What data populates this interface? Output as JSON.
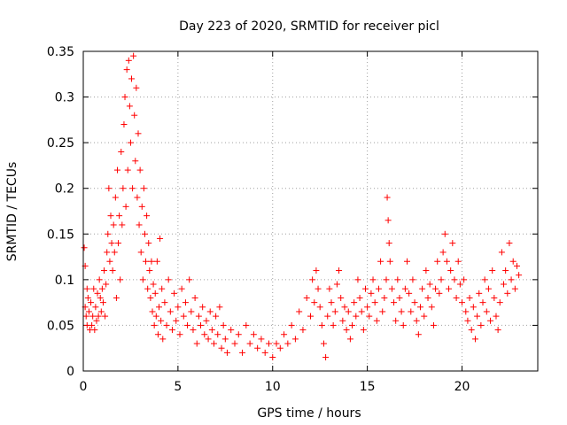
{
  "chart_data": {
    "type": "scatter",
    "title": "Day 223 of 2020, SRMTID for receiver picl",
    "xlabel": "GPS time / hours",
    "ylabel": "SRMTID / TECUs",
    "xlim": [
      0,
      24
    ],
    "ylim": [
      0,
      0.35
    ],
    "xticks": [
      0,
      5,
      10,
      15,
      20
    ],
    "xtick_labels": [
      "0",
      "5",
      "10",
      "15",
      "20"
    ],
    "yticks": [
      0,
      0.05,
      0.1,
      0.15,
      0.2,
      0.25,
      0.3,
      0.35
    ],
    "ytick_labels": [
      "0",
      "0.05",
      "0.1",
      "0.15",
      "0.2",
      "0.25",
      "0.3",
      "0.35"
    ],
    "grid": true,
    "marker": "+",
    "color": "#ff0000",
    "series": [
      {
        "values": [
          [
            0.05,
            0.135
          ],
          [
            0.1,
            0.115
          ],
          [
            0.1,
            0.07
          ],
          [
            0.15,
            0.06
          ],
          [
            0.2,
            0.09
          ],
          [
            0.2,
            0.05
          ],
          [
            0.25,
            0.08
          ],
          [
            0.3,
            0.065
          ],
          [
            0.35,
            0.045
          ],
          [
            0.4,
            0.075
          ],
          [
            0.45,
            0.05
          ],
          [
            0.5,
            0.06
          ],
          [
            0.55,
            0.09
          ],
          [
            0.6,
            0.045
          ],
          [
            0.65,
            0.07
          ],
          [
            0.7,
            0.055
          ],
          [
            0.75,
            0.085
          ],
          [
            0.8,
            0.06
          ],
          [
            0.85,
            0.1
          ],
          [
            0.9,
            0.08
          ],
          [
            0.95,
            0.065
          ],
          [
            1.0,
            0.09
          ],
          [
            1.05,
            0.075
          ],
          [
            1.1,
            0.11
          ],
          [
            1.15,
            0.06
          ],
          [
            1.2,
            0.095
          ],
          [
            1.25,
            0.13
          ],
          [
            1.3,
            0.15
          ],
          [
            1.35,
            0.2
          ],
          [
            1.4,
            0.12
          ],
          [
            1.45,
            0.17
          ],
          [
            1.5,
            0.14
          ],
          [
            1.55,
            0.11
          ],
          [
            1.6,
            0.16
          ],
          [
            1.65,
            0.13
          ],
          [
            1.7,
            0.19
          ],
          [
            1.75,
            0.08
          ],
          [
            1.8,
            0.22
          ],
          [
            1.85,
            0.14
          ],
          [
            1.9,
            0.17
          ],
          [
            1.95,
            0.1
          ],
          [
            2.0,
            0.24
          ],
          [
            2.05,
            0.16
          ],
          [
            2.1,
            0.2
          ],
          [
            2.15,
            0.27
          ],
          [
            2.2,
            0.3
          ],
          [
            2.25,
            0.18
          ],
          [
            2.3,
            0.33
          ],
          [
            2.35,
            0.22
          ],
          [
            2.4,
            0.34
          ],
          [
            2.45,
            0.29
          ],
          [
            2.5,
            0.25
          ],
          [
            2.55,
            0.32
          ],
          [
            2.6,
            0.2
          ],
          [
            2.65,
            0.345
          ],
          [
            2.7,
            0.28
          ],
          [
            2.75,
            0.23
          ],
          [
            2.8,
            0.31
          ],
          [
            2.85,
            0.19
          ],
          [
            2.9,
            0.26
          ],
          [
            2.95,
            0.16
          ],
          [
            3.0,
            0.22
          ],
          [
            3.05,
            0.13
          ],
          [
            3.1,
            0.18
          ],
          [
            3.15,
            0.1
          ],
          [
            3.2,
            0.2
          ],
          [
            3.25,
            0.15
          ],
          [
            3.3,
            0.12
          ],
          [
            3.35,
            0.17
          ],
          [
            3.4,
            0.09
          ],
          [
            3.45,
            0.14
          ],
          [
            3.5,
            0.11
          ],
          [
            3.55,
            0.08
          ],
          [
            3.6,
            0.12
          ],
          [
            3.65,
            0.065
          ],
          [
            3.7,
            0.095
          ],
          [
            3.75,
            0.05
          ],
          [
            3.8,
            0.085
          ],
          [
            3.85,
            0.06
          ],
          [
            3.9,
            0.12
          ],
          [
            3.95,
            0.04
          ],
          [
            4.0,
            0.07
          ],
          [
            4.05,
            0.145
          ],
          [
            4.1,
            0.055
          ],
          [
            4.15,
            0.09
          ],
          [
            4.2,
            0.035
          ],
          [
            4.3,
            0.075
          ],
          [
            4.4,
            0.05
          ],
          [
            4.5,
            0.1
          ],
          [
            4.6,
            0.065
          ],
          [
            4.7,
            0.045
          ],
          [
            4.8,
            0.085
          ],
          [
            4.9,
            0.055
          ],
          [
            5.0,
            0.07
          ],
          [
            5.1,
            0.04
          ],
          [
            5.2,
            0.09
          ],
          [
            5.3,
            0.06
          ],
          [
            5.4,
            0.075
          ],
          [
            5.5,
            0.05
          ],
          [
            5.6,
            0.1
          ],
          [
            5.7,
            0.065
          ],
          [
            5.8,
            0.045
          ],
          [
            5.9,
            0.08
          ],
          [
            6.0,
            0.03
          ],
          [
            6.1,
            0.06
          ],
          [
            6.2,
            0.05
          ],
          [
            6.3,
            0.07
          ],
          [
            6.4,
            0.04
          ],
          [
            6.5,
            0.055
          ],
          [
            6.6,
            0.035
          ],
          [
            6.7,
            0.065
          ],
          [
            6.8,
            0.045
          ],
          [
            6.9,
            0.03
          ],
          [
            7.0,
            0.06
          ],
          [
            7.1,
            0.04
          ],
          [
            7.2,
            0.07
          ],
          [
            7.3,
            0.025
          ],
          [
            7.4,
            0.05
          ],
          [
            7.5,
            0.035
          ],
          [
            7.6,
            0.02
          ],
          [
            7.8,
            0.045
          ],
          [
            8.0,
            0.03
          ],
          [
            8.2,
            0.04
          ],
          [
            8.4,
            0.02
          ],
          [
            8.6,
            0.05
          ],
          [
            8.8,
            0.03
          ],
          [
            9.0,
            0.04
          ],
          [
            9.2,
            0.025
          ],
          [
            9.4,
            0.035
          ],
          [
            9.6,
            0.02
          ],
          [
            9.8,
            0.03
          ],
          [
            10.0,
            0.015
          ],
          [
            10.2,
            0.03
          ],
          [
            10.4,
            0.025
          ],
          [
            10.6,
            0.04
          ],
          [
            10.8,
            0.03
          ],
          [
            11.0,
            0.05
          ],
          [
            11.2,
            0.035
          ],
          [
            11.4,
            0.065
          ],
          [
            11.6,
            0.045
          ],
          [
            11.8,
            0.08
          ],
          [
            12.0,
            0.06
          ],
          [
            12.1,
            0.1
          ],
          [
            12.2,
            0.075
          ],
          [
            12.3,
            0.11
          ],
          [
            12.4,
            0.09
          ],
          [
            12.5,
            0.07
          ],
          [
            12.6,
            0.05
          ],
          [
            12.7,
            0.03
          ],
          [
            12.8,
            0.015
          ],
          [
            12.9,
            0.06
          ],
          [
            13.0,
            0.09
          ],
          [
            13.1,
            0.075
          ],
          [
            13.2,
            0.05
          ],
          [
            13.3,
            0.065
          ],
          [
            13.4,
            0.095
          ],
          [
            13.5,
            0.11
          ],
          [
            13.6,
            0.08
          ],
          [
            13.7,
            0.055
          ],
          [
            13.8,
            0.07
          ],
          [
            13.9,
            0.045
          ],
          [
            14.0,
            0.065
          ],
          [
            14.1,
            0.035
          ],
          [
            14.2,
            0.05
          ],
          [
            14.3,
            0.075
          ],
          [
            14.4,
            0.06
          ],
          [
            14.5,
            0.1
          ],
          [
            14.6,
            0.08
          ],
          [
            14.7,
            0.065
          ],
          [
            14.8,
            0.045
          ],
          [
            14.9,
            0.09
          ],
          [
            15.0,
            0.07
          ],
          [
            15.1,
            0.06
          ],
          [
            15.2,
            0.085
          ],
          [
            15.3,
            0.1
          ],
          [
            15.4,
            0.075
          ],
          [
            15.5,
            0.055
          ],
          [
            15.6,
            0.09
          ],
          [
            15.7,
            0.12
          ],
          [
            15.8,
            0.065
          ],
          [
            15.9,
            0.08
          ],
          [
            16.0,
            0.1
          ],
          [
            16.05,
            0.19
          ],
          [
            16.1,
            0.165
          ],
          [
            16.15,
            0.14
          ],
          [
            16.2,
            0.12
          ],
          [
            16.3,
            0.09
          ],
          [
            16.4,
            0.075
          ],
          [
            16.5,
            0.055
          ],
          [
            16.6,
            0.1
          ],
          [
            16.7,
            0.08
          ],
          [
            16.8,
            0.065
          ],
          [
            16.9,
            0.05
          ],
          [
            17.0,
            0.09
          ],
          [
            17.1,
            0.12
          ],
          [
            17.2,
            0.085
          ],
          [
            17.3,
            0.065
          ],
          [
            17.4,
            0.1
          ],
          [
            17.5,
            0.075
          ],
          [
            17.6,
            0.055
          ],
          [
            17.7,
            0.04
          ],
          [
            17.8,
            0.07
          ],
          [
            17.9,
            0.09
          ],
          [
            18.0,
            0.06
          ],
          [
            18.1,
            0.11
          ],
          [
            18.2,
            0.08
          ],
          [
            18.3,
            0.095
          ],
          [
            18.4,
            0.07
          ],
          [
            18.5,
            0.05
          ],
          [
            18.6,
            0.09
          ],
          [
            18.7,
            0.12
          ],
          [
            18.8,
            0.085
          ],
          [
            18.9,
            0.1
          ],
          [
            19.0,
            0.13
          ],
          [
            19.1,
            0.15
          ],
          [
            19.2,
            0.12
          ],
          [
            19.3,
            0.09
          ],
          [
            19.4,
            0.11
          ],
          [
            19.5,
            0.14
          ],
          [
            19.6,
            0.1
          ],
          [
            19.7,
            0.08
          ],
          [
            19.8,
            0.12
          ],
          [
            19.9,
            0.095
          ],
          [
            20.0,
            0.075
          ],
          [
            20.1,
            0.1
          ],
          [
            20.2,
            0.065
          ],
          [
            20.3,
            0.055
          ],
          [
            20.4,
            0.08
          ],
          [
            20.5,
            0.045
          ],
          [
            20.6,
            0.07
          ],
          [
            20.7,
            0.035
          ],
          [
            20.8,
            0.06
          ],
          [
            20.9,
            0.085
          ],
          [
            21.0,
            0.05
          ],
          [
            21.1,
            0.075
          ],
          [
            21.2,
            0.1
          ],
          [
            21.3,
            0.065
          ],
          [
            21.4,
            0.09
          ],
          [
            21.5,
            0.055
          ],
          [
            21.6,
            0.11
          ],
          [
            21.7,
            0.08
          ],
          [
            21.8,
            0.06
          ],
          [
            21.9,
            0.045
          ],
          [
            22.0,
            0.075
          ],
          [
            22.1,
            0.13
          ],
          [
            22.2,
            0.095
          ],
          [
            22.3,
            0.11
          ],
          [
            22.4,
            0.085
          ],
          [
            22.5,
            0.14
          ],
          [
            22.6,
            0.1
          ],
          [
            22.7,
            0.12
          ],
          [
            22.8,
            0.09
          ],
          [
            22.9,
            0.115
          ],
          [
            23.0,
            0.105
          ]
        ]
      }
    ]
  }
}
